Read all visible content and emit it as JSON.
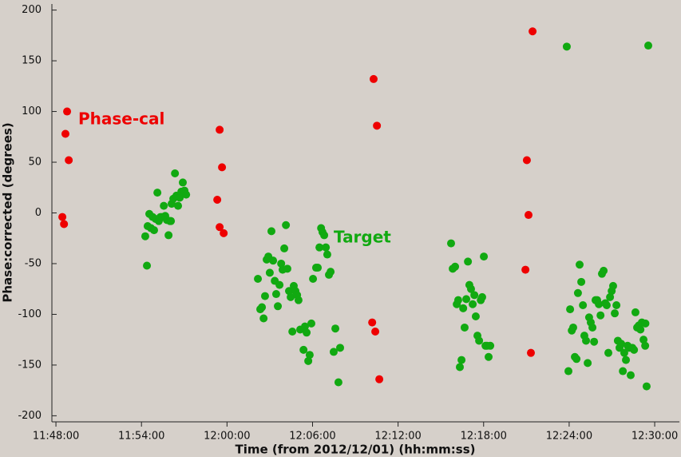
{
  "chart_data": {
    "type": "scatter",
    "xlabel": "Time (from 2012/12/01) (hh:mm:ss)",
    "ylabel": "Phase:corrected (degrees)",
    "xlim": [
      "11:47:43",
      "12:31:44"
    ],
    "xticks": [
      "11:48:00",
      "11:54:00",
      "12:00:00",
      "12:06:00",
      "12:12:00",
      "12:18:00",
      "12:24:00",
      "12:30:00"
    ],
    "ylim": [
      -206,
      206
    ],
    "yticks": [
      -200,
      -150,
      -100,
      -50,
      0,
      50,
      100,
      150,
      200
    ],
    "series": [
      {
        "name": "Phase-cal",
        "color": "#ee0000",
        "x": [
          "11:48:27",
          "11:48:34",
          "11:48:40",
          "11:48:47",
          "11:48:54",
          "11:59:19",
          "11:59:29",
          "11:59:29",
          "11:59:39",
          "11:59:46",
          "12:10:17",
          "12:10:31",
          "12:10:11",
          "12:10:24",
          "12:10:41",
          "12:21:02",
          "12:21:09",
          "12:20:56",
          "12:21:19",
          "12:21:26"
        ],
        "values": [
          -4,
          -11,
          78,
          100,
          52,
          13,
          82,
          -14,
          45,
          -20,
          132,
          86,
          -108,
          -117,
          -164,
          52,
          -2,
          -56,
          -138,
          179
        ]
      },
      {
        "name": "Target",
        "color": "#11a911",
        "x": [
          "11:54:23",
          "11:54:16",
          "11:54:26",
          "11:54:33",
          "11:54:40",
          "11:54:47",
          "11:54:53",
          "11:55:00",
          "11:55:07",
          "11:55:13",
          "11:55:20",
          "11:55:27",
          "11:55:34",
          "11:55:40",
          "11:55:47",
          "11:55:54",
          "11:56:00",
          "11:56:04",
          "11:56:07",
          "11:56:14",
          "11:56:21",
          "11:56:27",
          "11:56:34",
          "11:56:41",
          "11:56:48",
          "11:56:54",
          "11:57:01",
          "11:57:08",
          "12:02:10",
          "12:02:20",
          "12:02:27",
          "12:02:34",
          "12:02:40",
          "12:02:47",
          "12:02:54",
          "12:03:00",
          "12:03:07",
          "12:03:14",
          "12:03:21",
          "12:03:27",
          "12:03:34",
          "12:03:41",
          "12:03:48",
          "12:03:54",
          "12:04:01",
          "12:04:08",
          "12:04:14",
          "12:04:21",
          "12:04:28",
          "12:04:35",
          "12:04:41",
          "12:04:48",
          "12:04:55",
          "12:05:01",
          "12:05:08",
          "12:05:22",
          "12:05:28",
          "12:05:35",
          "12:05:42",
          "12:05:48",
          "12:05:55",
          "12:06:02",
          "12:06:15",
          "12:06:22",
          "12:06:29",
          "12:06:36",
          "12:06:42",
          "12:06:49",
          "12:06:56",
          "12:07:02",
          "12:07:09",
          "12:07:16",
          "12:07:29",
          "12:07:36",
          "12:07:49",
          "12:07:56",
          "12:15:43",
          "12:15:50",
          "12:16:00",
          "12:16:07",
          "12:16:13",
          "12:16:20",
          "12:16:27",
          "12:16:34",
          "12:16:40",
          "12:16:47",
          "12:16:54",
          "12:17:00",
          "12:17:07",
          "12:17:14",
          "12:17:21",
          "12:17:27",
          "12:17:34",
          "12:17:41",
          "12:17:48",
          "12:17:54",
          "12:18:01",
          "12:18:08",
          "12:18:14",
          "12:18:21",
          "12:18:28",
          "12:23:50",
          "12:29:33",
          "12:23:57",
          "12:24:04",
          "12:24:11",
          "12:24:17",
          "12:24:24",
          "12:24:31",
          "12:24:37",
          "12:24:44",
          "12:24:51",
          "12:24:58",
          "12:25:04",
          "12:25:11",
          "12:25:18",
          "12:25:24",
          "12:25:31",
          "12:25:38",
          "12:25:45",
          "12:25:51",
          "12:25:58",
          "12:26:05",
          "12:26:12",
          "12:26:18",
          "12:26:25",
          "12:26:32",
          "12:26:38",
          "12:26:45",
          "12:26:52",
          "12:26:59",
          "12:27:05",
          "12:27:12",
          "12:27:19",
          "12:27:25",
          "12:27:32",
          "12:27:39",
          "12:27:46",
          "12:27:52",
          "12:27:59",
          "12:28:06",
          "12:28:12",
          "12:28:19",
          "12:28:26",
          "12:28:33",
          "12:28:39",
          "12:28:46",
          "12:28:53",
          "12:29:00",
          "12:29:06",
          "12:29:13",
          "12:29:20",
          "12:29:21",
          "12:29:26"
        ],
        "values": [
          -52,
          -23,
          -13,
          -1,
          -15,
          -4,
          -17,
          -6,
          20,
          -8,
          -4,
          -4,
          7,
          -3,
          -7,
          -22,
          -8,
          -8,
          9,
          14,
          39,
          17,
          7,
          15,
          21,
          30,
          22,
          18,
          -65,
          -95,
          -93,
          -104,
          -82,
          -46,
          -43,
          -59,
          -18,
          -47,
          -67,
          -80,
          -92,
          -71,
          -50,
          -56,
          -35,
          -12,
          -55,
          -77,
          -83,
          -117,
          -72,
          -77,
          -81,
          -86,
          -115,
          -135,
          -112,
          -118,
          -146,
          -140,
          -109,
          -65,
          -54,
          -54,
          -34,
          -15,
          -19,
          -22,
          -34,
          -41,
          -61,
          -58,
          -137,
          -114,
          -167,
          -133,
          -30,
          -55,
          -53,
          -90,
          -86,
          -152,
          -145,
          -94,
          -113,
          -85,
          -48,
          -71,
          -75,
          -90,
          -81,
          -102,
          -121,
          -126,
          -86,
          -83,
          -43,
          -131,
          -131,
          -142,
          -131,
          164,
          165,
          -156,
          -95,
          -116,
          -113,
          -142,
          -144,
          -79,
          -51,
          -68,
          -91,
          -121,
          -126,
          -148,
          -103,
          -108,
          -113,
          -127,
          -86,
          -86,
          -90,
          -101,
          -60,
          -57,
          -89,
          -91,
          -138,
          -83,
          -77,
          -72,
          -99,
          -91,
          -126,
          -133,
          -129,
          -156,
          -138,
          -145,
          -131,
          -133,
          -160,
          -133,
          -135,
          -98,
          -113,
          -111,
          -115,
          -108,
          -125,
          -131,
          -109,
          -171
        ]
      }
    ]
  }
}
